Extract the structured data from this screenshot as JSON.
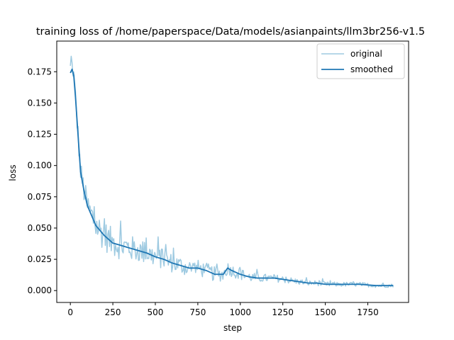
{
  "chart_data": {
    "type": "line",
    "title": "training loss of /home/paperspace/Data/models/asianpaints/llm3br256-v1.5",
    "xlabel": "step",
    "ylabel": "loss",
    "xlim": [
      -80,
      1990
    ],
    "ylim": [
      -0.0095,
      0.1995
    ],
    "x_ticks": [
      0,
      250,
      500,
      750,
      1000,
      1250,
      1500,
      1750
    ],
    "x_tick_labels": [
      "0",
      "250",
      "500",
      "750",
      "1000",
      "1250",
      "1500",
      "1750"
    ],
    "y_ticks": [
      0.0,
      0.025,
      0.05,
      0.075,
      0.1,
      0.125,
      0.15,
      0.175
    ],
    "y_tick_labels": [
      "0.000",
      "0.025",
      "0.050",
      "0.075",
      "0.100",
      "0.125",
      "0.150",
      "0.175"
    ],
    "grid": false,
    "legend_position": "upper right",
    "series": [
      {
        "name": "original",
        "color": "#9ecae1",
        "x_range": [
          0,
          1900
        ],
        "points": 380,
        "trend": [
          [
            0,
            0.178
          ],
          [
            10,
            0.18
          ],
          [
            20,
            0.172
          ],
          [
            30,
            0.155
          ],
          [
            40,
            0.135
          ],
          [
            50,
            0.115
          ],
          [
            60,
            0.095
          ],
          [
            80,
            0.08
          ],
          [
            100,
            0.068
          ],
          [
            125,
            0.06
          ],
          [
            150,
            0.052
          ],
          [
            200,
            0.044
          ],
          [
            250,
            0.038
          ],
          [
            300,
            0.036
          ],
          [
            350,
            0.034
          ],
          [
            400,
            0.032
          ],
          [
            450,
            0.03
          ],
          [
            500,
            0.027
          ],
          [
            550,
            0.025
          ],
          [
            600,
            0.022
          ],
          [
            650,
            0.02
          ],
          [
            700,
            0.018
          ],
          [
            750,
            0.018
          ],
          [
            800,
            0.016
          ],
          [
            850,
            0.013
          ],
          [
            900,
            0.013
          ],
          [
            925,
            0.018
          ],
          [
            950,
            0.016
          ],
          [
            1000,
            0.013
          ],
          [
            1050,
            0.011
          ],
          [
            1100,
            0.01
          ],
          [
            1150,
            0.01
          ],
          [
            1200,
            0.01
          ],
          [
            1250,
            0.009
          ],
          [
            1300,
            0.008
          ],
          [
            1350,
            0.007
          ],
          [
            1400,
            0.006
          ],
          [
            1450,
            0.006
          ],
          [
            1500,
            0.005
          ],
          [
            1600,
            0.005
          ],
          [
            1700,
            0.005
          ],
          [
            1800,
            0.004
          ],
          [
            1900,
            0.004
          ]
        ],
        "noise": [
          [
            0,
            0.004
          ],
          [
            60,
            0.007
          ],
          [
            150,
            0.009
          ],
          [
            300,
            0.008
          ],
          [
            500,
            0.006
          ],
          [
            700,
            0.005
          ],
          [
            900,
            0.004
          ],
          [
            1100,
            0.0025
          ],
          [
            1400,
            0.0015
          ],
          [
            1900,
            0.001
          ]
        ]
      },
      {
        "name": "smoothed",
        "color": "#1f77b4",
        "x": [
          0,
          10,
          20,
          30,
          40,
          50,
          60,
          80,
          100,
          125,
          150,
          200,
          250,
          300,
          350,
          400,
          450,
          500,
          550,
          600,
          650,
          700,
          750,
          800,
          850,
          900,
          925,
          950,
          1000,
          1050,
          1100,
          1150,
          1200,
          1250,
          1300,
          1350,
          1400,
          1450,
          1500,
          1600,
          1700,
          1800,
          1900
        ],
        "y": [
          0.174,
          0.177,
          0.172,
          0.155,
          0.135,
          0.115,
          0.095,
          0.08,
          0.068,
          0.06,
          0.052,
          0.044,
          0.038,
          0.036,
          0.034,
          0.032,
          0.03,
          0.027,
          0.025,
          0.022,
          0.02,
          0.018,
          0.018,
          0.016,
          0.013,
          0.013,
          0.018,
          0.016,
          0.013,
          0.011,
          0.01,
          0.01,
          0.01,
          0.009,
          0.008,
          0.007,
          0.006,
          0.006,
          0.005,
          0.005,
          0.005,
          0.004,
          0.004
        ]
      }
    ]
  }
}
